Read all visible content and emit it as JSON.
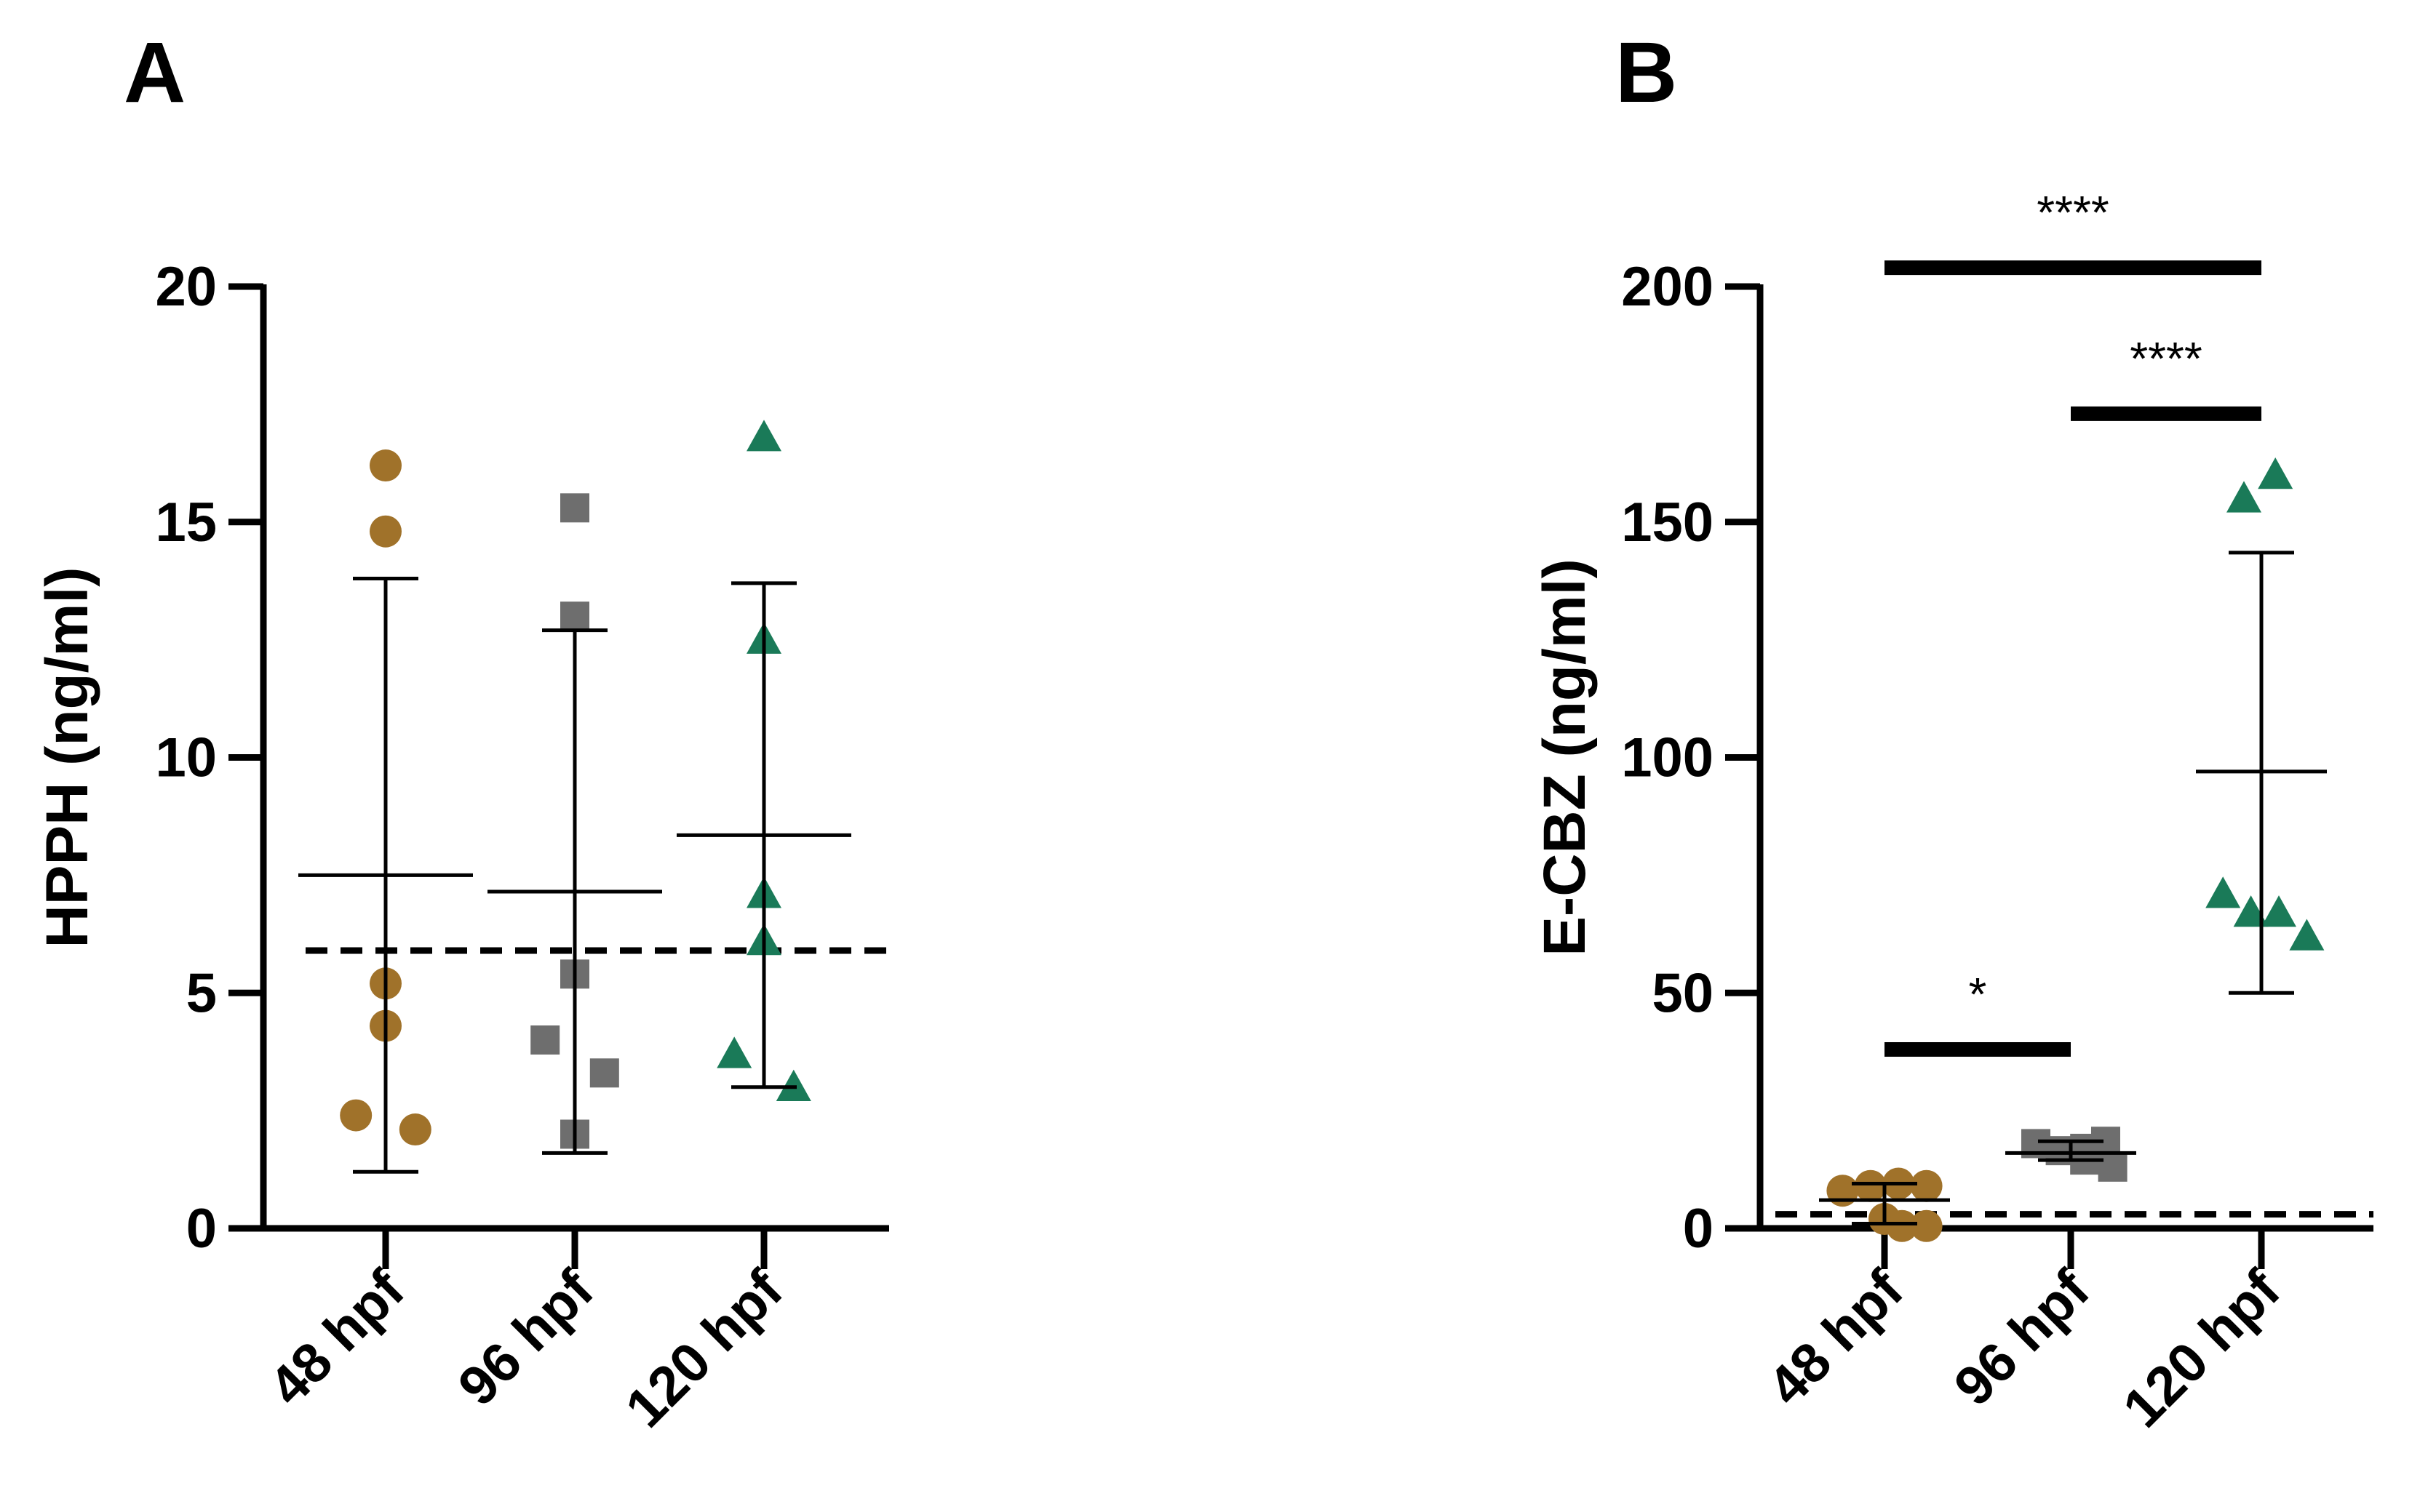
{
  "figure": {
    "panels": [
      "A",
      "B"
    ]
  },
  "chart_data": [
    {
      "panel": "A",
      "type": "scatter",
      "title": "",
      "ylabel": "HPPH (ng/ml)",
      "xlabel": "",
      "ylim": [
        0,
        20
      ],
      "yticks": [
        0,
        5,
        10,
        15,
        20
      ],
      "categories": [
        "48 hpf",
        "96 hpf",
        "120 hpf"
      ],
      "threshold": 5.9,
      "groups": [
        {
          "name": "48 hpf",
          "marker": "circle",
          "color": "#a0722a",
          "points": [
            [
              0,
              16.2
            ],
            [
              0,
              14.8
            ],
            [
              0,
              5.2
            ],
            [
              0,
              4.3
            ],
            [
              -0.17,
              2.4
            ],
            [
              0.17,
              2.1
            ]
          ],
          "mean": 7.5,
          "sd_low": 1.2,
          "sd_high": 13.8
        },
        {
          "name": "96 hpf",
          "marker": "square",
          "color": "#6e6e6e",
          "points": [
            [
              0,
              15.3
            ],
            [
              0,
              13.0
            ],
            [
              0,
              5.4
            ],
            [
              -0.17,
              4.0
            ],
            [
              0.17,
              3.3
            ],
            [
              0,
              2.0
            ]
          ],
          "mean": 7.15,
          "sd_low": 1.6,
          "sd_high": 12.7
        },
        {
          "name": "120 hpf",
          "marker": "triangle",
          "color": "#1a7a58",
          "points": [
            [
              0,
              16.8
            ],
            [
              0,
              12.5
            ],
            [
              0,
              7.1
            ],
            [
              0,
              6.1
            ],
            [
              -0.17,
              3.7
            ],
            [
              0.17,
              3.0
            ]
          ],
          "mean": 8.35,
          "sd_low": 3.0,
          "sd_high": 13.7
        }
      ],
      "significance": []
    },
    {
      "panel": "B",
      "type": "scatter",
      "title": "",
      "ylabel": "E-CBZ (ng/ml)",
      "xlabel": "",
      "ylim": [
        0,
        200
      ],
      "yticks": [
        0,
        50,
        100,
        150,
        200
      ],
      "categories": [
        "48 hpf",
        "96 hpf",
        "120 hpf"
      ],
      "threshold": 3,
      "groups": [
        {
          "name": "48 hpf",
          "marker": "circle",
          "color": "#a0722a",
          "points": [
            [
              -0.24,
              8
            ],
            [
              -0.08,
              9
            ],
            [
              0.08,
              9.5
            ],
            [
              0.24,
              9
            ],
            [
              0,
              2
            ],
            [
              0.1,
              0.5
            ],
            [
              0.24,
              0.5
            ]
          ],
          "mean": 6,
          "sd_low": 1,
          "sd_high": 9.5
        },
        {
          "name": "96 hpf",
          "marker": "square",
          "color": "#6e6e6e",
          "points": [
            [
              -0.2,
              18
            ],
            [
              -0.06,
              16.5
            ],
            [
              0.08,
              17
            ],
            [
              0.2,
              18.5
            ],
            [
              0.08,
              14.5
            ],
            [
              0.24,
              13
            ]
          ],
          "mean": 16,
          "sd_low": 14.5,
          "sd_high": 18.5
        },
        {
          "name": "120 hpf",
          "marker": "triangle",
          "color": "#1a7a58",
          "points": [
            [
              -0.1,
              155
            ],
            [
              0.08,
              160
            ],
            [
              -0.22,
              71
            ],
            [
              -0.06,
              67
            ],
            [
              0.1,
              67
            ],
            [
              0.26,
              62
            ]
          ],
          "mean": 97,
          "sd_low": 50,
          "sd_high": 143.5
        }
      ],
      "significance": [
        {
          "from": 0,
          "to": 2,
          "label": "****",
          "y": 204
        },
        {
          "from": 1,
          "to": 2,
          "label": "****",
          "y": 173
        },
        {
          "from": 0,
          "to": 1,
          "label": "*",
          "y": 38
        }
      ]
    }
  ]
}
